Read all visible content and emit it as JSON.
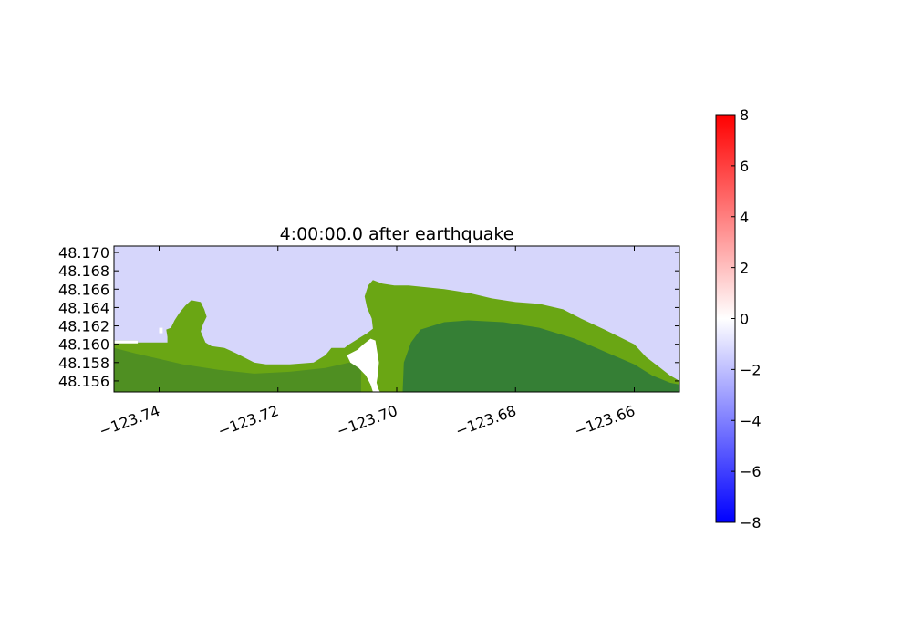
{
  "chart_data": {
    "type": "heatmap",
    "title": "4:00:00.0 after earthquake",
    "xlabel": "",
    "ylabel": "",
    "xlim": [
      -123.7476,
      -123.6524
    ],
    "ylim": [
      48.1548,
      48.1707
    ],
    "x_ticks": [
      -123.74,
      -123.72,
      -123.7,
      -123.68,
      -123.66
    ],
    "x_tick_labels": [
      "−123.74",
      "−123.72",
      "−123.70",
      "−123.68",
      "−123.66"
    ],
    "y_ticks": [
      48.156,
      48.158,
      48.16,
      48.162,
      48.164,
      48.166,
      48.168,
      48.17
    ],
    "y_tick_labels": [
      "48.156",
      "48.158",
      "48.160",
      "48.162",
      "48.164",
      "48.166",
      "48.168",
      "48.170"
    ],
    "colorbar": {
      "range": [
        -8,
        8
      ],
      "ticks": [
        8,
        6,
        4,
        2,
        0,
        -2,
        -4,
        -6,
        -8
      ],
      "tick_labels": [
        "8",
        "6",
        "4",
        "2",
        "0",
        "−2",
        "−4",
        "−6",
        "−8"
      ],
      "colormap": [
        "#0000ff",
        "#ffffff",
        "#ff0000"
      ]
    },
    "colors": {
      "water": "#d6d6fb",
      "land_light": "#6aa614",
      "land_mid": "#4f8f22",
      "land_dark": "#357f35",
      "dry_spot": "#ffffff"
    },
    "coastline": [
      [
        -123.7476,
        48.1604
      ],
      [
        -123.7436,
        48.1604
      ],
      [
        -123.7436,
        48.1602
      ],
      [
        -123.7386,
        48.1602
      ],
      [
        -123.7386,
        48.1608
      ],
      [
        -123.7388,
        48.1616
      ],
      [
        -123.738,
        48.1618
      ],
      [
        -123.7374,
        48.1626
      ],
      [
        -123.7366,
        48.1634
      ],
      [
        -123.7356,
        48.1642
      ],
      [
        -123.7346,
        48.1648
      ],
      [
        -123.733,
        48.1646
      ],
      [
        -123.7324,
        48.1638
      ],
      [
        -123.732,
        48.163
      ],
      [
        -123.7326,
        48.1622
      ],
      [
        -123.733,
        48.1614
      ],
      [
        -123.7322,
        48.1602
      ],
      [
        -123.7312,
        48.1598
      ],
      [
        -123.729,
        48.1596
      ],
      [
        -123.727,
        48.159
      ],
      [
        -123.724,
        48.158
      ],
      [
        -123.722,
        48.1578
      ],
      [
        -123.718,
        48.1578
      ],
      [
        -123.714,
        48.158
      ],
      [
        -123.712,
        48.1588
      ],
      [
        -123.711,
        48.1596
      ],
      [
        -123.7088,
        48.1596
      ],
      [
        -123.708,
        48.16
      ],
      [
        -123.706,
        48.1608
      ],
      [
        -123.705,
        48.1612
      ],
      [
        -123.704,
        48.1617
      ],
      [
        -123.7042,
        48.1628
      ],
      [
        -123.705,
        48.164
      ],
      [
        -123.7054,
        48.1652
      ],
      [
        -123.7048,
        48.1664
      ],
      [
        -123.704,
        48.167
      ],
      [
        -123.7024,
        48.1666
      ],
      [
        -123.7004,
        48.1664
      ],
      [
        -123.698,
        48.1664
      ],
      [
        -123.695,
        48.1662
      ],
      [
        -123.692,
        48.166
      ],
      [
        -123.688,
        48.1656
      ],
      [
        -123.684,
        48.165
      ],
      [
        -123.68,
        48.1646
      ],
      [
        -123.676,
        48.1644
      ],
      [
        -123.672,
        48.1638
      ],
      [
        -123.669,
        48.1628
      ],
      [
        -123.665,
        48.1616
      ],
      [
        -123.66,
        48.16
      ],
      [
        -123.658,
        48.1586
      ],
      [
        -123.656,
        48.1576
      ],
      [
        -123.654,
        48.1566
      ],
      [
        -123.6524,
        48.156
      ],
      [
        -123.6524,
        48.1548
      ],
      [
        -123.7476,
        48.1548
      ]
    ],
    "west_peninsula_dark": [
      [
        -123.7476,
        48.1596
      ],
      [
        -123.744,
        48.159
      ],
      [
        -123.74,
        48.1584
      ],
      [
        -123.736,
        48.1578
      ],
      [
        -123.73,
        48.1572
      ],
      [
        -123.724,
        48.1568
      ],
      [
        -123.718,
        48.157
      ],
      [
        -123.712,
        48.1574
      ],
      [
        -123.708,
        48.158
      ],
      [
        -123.706,
        48.1576
      ],
      [
        -123.706,
        48.1548
      ],
      [
        -123.7476,
        48.1548
      ]
    ],
    "east_dark": [
      [
        -123.699,
        48.1548
      ],
      [
        -123.6988,
        48.158
      ],
      [
        -123.6976,
        48.1602
      ],
      [
        -123.696,
        48.1616
      ],
      [
        -123.692,
        48.1624
      ],
      [
        -123.688,
        48.1626
      ],
      [
        -123.682,
        48.1624
      ],
      [
        -123.676,
        48.1618
      ],
      [
        -123.67,
        48.1606
      ],
      [
        -123.665,
        48.1592
      ],
      [
        -123.66,
        48.1578
      ],
      [
        -123.657,
        48.1566
      ],
      [
        -123.654,
        48.1558
      ],
      [
        -123.6524,
        48.1556
      ],
      [
        -123.6524,
        48.1548
      ]
    ],
    "dry_patches": [
      [
        [
          -123.7066,
          48.1594
        ],
        [
          -123.7056,
          48.16
        ],
        [
          -123.7044,
          48.1606
        ],
        [
          -123.7036,
          48.1604
        ],
        [
          -123.7034,
          48.1596
        ],
        [
          -123.703,
          48.158
        ],
        [
          -123.7032,
          48.1566
        ],
        [
          -123.7034,
          48.1558
        ],
        [
          -123.703,
          48.155
        ],
        [
          -123.7028,
          48.1548
        ],
        [
          -123.704,
          48.1548
        ],
        [
          -123.7044,
          48.1556
        ],
        [
          -123.7052,
          48.1566
        ],
        [
          -123.7064,
          48.1574
        ],
        [
          -123.7078,
          48.158
        ],
        [
          -123.7084,
          48.1588
        ]
      ],
      [
        [
          -123.7476,
          48.1604
        ],
        [
          -123.7436,
          48.1604
        ],
        [
          -123.7436,
          48.1601
        ],
        [
          -123.7476,
          48.1601
        ]
      ],
      [
        [
          -123.74,
          48.1618
        ],
        [
          -123.7394,
          48.1618
        ],
        [
          -123.7394,
          48.1612
        ],
        [
          -123.74,
          48.1612
        ]
      ]
    ]
  }
}
